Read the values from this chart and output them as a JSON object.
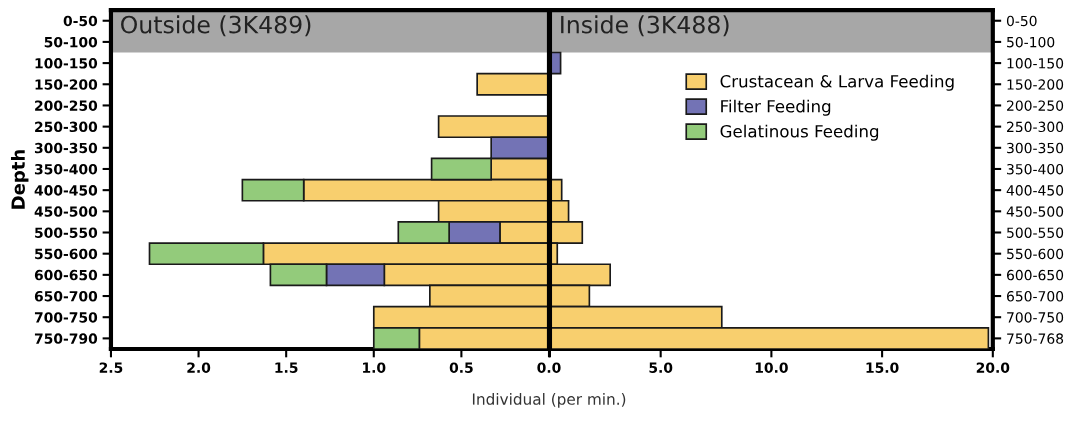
{
  "chart_data": [
    {
      "type": "bar",
      "orientation": "horizontal",
      "stacked": true,
      "title": "Outside (3K489)",
      "ylabel": "Depth",
      "xlabel": "Individual (per min.)",
      "categories": [
        "0-50",
        "50-100",
        "100-150",
        "150-200",
        "200-250",
        "250-300",
        "300-350",
        "350-400",
        "400-450",
        "450-500",
        "500-550",
        "550-600",
        "600-650",
        "650-700",
        "700-750",
        "750-790"
      ],
      "series": [
        {
          "color": "#f8cf6e",
          "values": [
            null,
            null,
            null,
            0.41,
            null,
            0.63,
            null,
            0.33,
            1.4,
            0.63,
            0.28,
            1.63,
            0.94,
            0.68,
            1.0,
            0.74
          ]
        },
        {
          "color": "#7373b5",
          "values": [
            null,
            null,
            null,
            null,
            null,
            null,
            0.33,
            null,
            null,
            null,
            0.29,
            null,
            0.33,
            null,
            null,
            null
          ]
        },
        {
          "color": "#93cb7b",
          "values": [
            null,
            null,
            null,
            null,
            null,
            null,
            null,
            0.34,
            0.35,
            null,
            0.29,
            0.65,
            0.32,
            null,
            null,
            0.26
          ]
        }
      ],
      "xlim": [
        2.5,
        0
      ],
      "xticks": [
        {
          "value": 2.5,
          "label": "2.5"
        },
        {
          "value": 2.0,
          "label": "2.0"
        },
        {
          "value": 1.5,
          "label": "1.5"
        },
        {
          "value": 1.0,
          "label": "1.0"
        },
        {
          "value": 0.5,
          "label": "0.5"
        },
        {
          "value": 0,
          "label": "0.0"
        }
      ],
      "bands": [
        {
          "axis": "y",
          "from": "0-50",
          "to": "50-100",
          "color": "#a7a7a7"
        }
      ],
      "grid": false,
      "legend": false
    },
    {
      "type": "bar",
      "orientation": "horizontal",
      "stacked": true,
      "title": "Inside (3K488)",
      "categories": [
        "0-50",
        "50-100",
        "100-150",
        "150-200",
        "200-250",
        "250-300",
        "300-350",
        "350-400",
        "400-450",
        "450-500",
        "500-550",
        "550-600",
        "600-650",
        "650-700",
        "700-750",
        "750-768"
      ],
      "series": [
        {
          "name": "Crustacean & Larva Feeding",
          "color": "#f8cf6e",
          "values": [
            null,
            null,
            null,
            null,
            null,
            null,
            null,
            null,
            0.53,
            0.84,
            1.46,
            0.33,
            2.72,
            1.78,
            7.76,
            19.8
          ]
        },
        {
          "name": "Filter Feeding",
          "color": "#7373b5",
          "values": [
            null,
            null,
            0.48,
            null,
            null,
            null,
            null,
            null,
            null,
            null,
            null,
            null,
            null,
            null,
            null,
            null
          ]
        },
        {
          "name": "Gelatinous Feeding",
          "color": "#93cb7b",
          "values": [
            null,
            null,
            null,
            null,
            null,
            null,
            null,
            null,
            null,
            null,
            null,
            null,
            null,
            null,
            null,
            null
          ]
        }
      ],
      "xlim": [
        0,
        20
      ],
      "xticks": [
        {
          "value": 0,
          "label": null
        },
        {
          "value": 5,
          "label": "5.0"
        },
        {
          "value": 10,
          "label": "10.0"
        },
        {
          "value": 15,
          "label": "15.0"
        },
        {
          "value": 20,
          "label": "20.0"
        }
      ],
      "bands": [
        {
          "axis": "y",
          "from": "0-50",
          "to": "50-100",
          "color": "#a7a7a7"
        }
      ],
      "grid": false,
      "legend": "top right"
    }
  ]
}
